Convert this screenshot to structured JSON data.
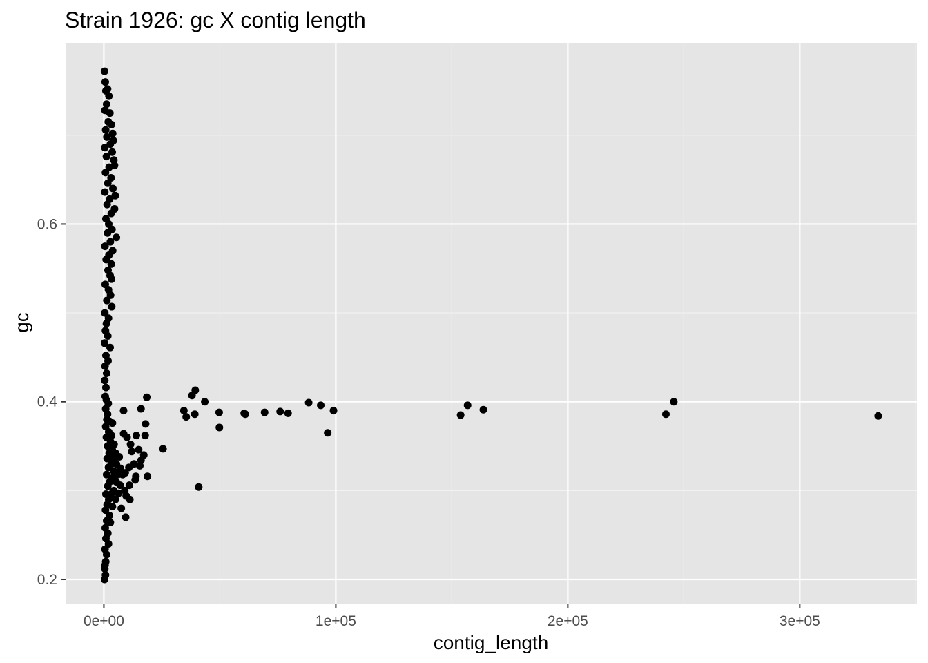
{
  "chart_data": {
    "type": "scatter",
    "title": "Strain 1926: gc X contig length",
    "xlabel": "contig_length",
    "ylabel": "gc",
    "xlim": [
      -16500,
      350500
    ],
    "ylim": [
      0.172,
      0.804
    ],
    "x_ticks": [
      {
        "value": 0,
        "label": "0e+00"
      },
      {
        "value": 100000,
        "label": "1e+05"
      },
      {
        "value": 200000,
        "label": "2e+05"
      },
      {
        "value": 300000,
        "label": "3e+05"
      }
    ],
    "y_ticks": [
      {
        "value": 0.2,
        "label": "0.2"
      },
      {
        "value": 0.4,
        "label": "0.4"
      },
      {
        "value": 0.6,
        "label": "0.6"
      }
    ],
    "grid": true,
    "panel_color": "#e5e5e5",
    "point_color": "#000000",
    "points": [
      {
        "x": 300,
        "y": 0.772
      },
      {
        "x": 600,
        "y": 0.76
      },
      {
        "x": 900,
        "y": 0.75
      },
      {
        "x": 1600,
        "y": 0.752
      },
      {
        "x": 2200,
        "y": 0.744
      },
      {
        "x": 1200,
        "y": 0.735
      },
      {
        "x": 500,
        "y": 0.728
      },
      {
        "x": 2600,
        "y": 0.725
      },
      {
        "x": 1900,
        "y": 0.715
      },
      {
        "x": 800,
        "y": 0.706
      },
      {
        "x": 3300,
        "y": 0.712
      },
      {
        "x": 3800,
        "y": 0.702
      },
      {
        "x": 1300,
        "y": 0.698
      },
      {
        "x": 4100,
        "y": 0.694
      },
      {
        "x": 2800,
        "y": 0.69
      },
      {
        "x": 400,
        "y": 0.686
      },
      {
        "x": 3600,
        "y": 0.681
      },
      {
        "x": 1100,
        "y": 0.676
      },
      {
        "x": 4300,
        "y": 0.672
      },
      {
        "x": 4600,
        "y": 0.666
      },
      {
        "x": 2300,
        "y": 0.664
      },
      {
        "x": 700,
        "y": 0.658
      },
      {
        "x": 3100,
        "y": 0.652
      },
      {
        "x": 1700,
        "y": 0.646
      },
      {
        "x": 3900,
        "y": 0.64
      },
      {
        "x": 400,
        "y": 0.636
      },
      {
        "x": 4900,
        "y": 0.632
      },
      {
        "x": 2500,
        "y": 0.628
      },
      {
        "x": 1400,
        "y": 0.622
      },
      {
        "x": 4600,
        "y": 0.617
      },
      {
        "x": 3200,
        "y": 0.612
      },
      {
        "x": 900,
        "y": 0.606
      },
      {
        "x": 2100,
        "y": 0.6
      },
      {
        "x": 3500,
        "y": 0.594
      },
      {
        "x": 1600,
        "y": 0.59
      },
      {
        "x": 5400,
        "y": 0.585
      },
      {
        "x": 2800,
        "y": 0.58
      },
      {
        "x": 500,
        "y": 0.575
      },
      {
        "x": 3800,
        "y": 0.57
      },
      {
        "x": 2200,
        "y": 0.565
      },
      {
        "x": 1000,
        "y": 0.56
      },
      {
        "x": 3200,
        "y": 0.555
      },
      {
        "x": 1800,
        "y": 0.548
      },
      {
        "x": 2700,
        "y": 0.542
      },
      {
        "x": 3300,
        "y": 0.538
      },
      {
        "x": 600,
        "y": 0.532
      },
      {
        "x": 2000,
        "y": 0.526
      },
      {
        "x": 2900,
        "y": 0.52
      },
      {
        "x": 1300,
        "y": 0.514
      },
      {
        "x": 3400,
        "y": 0.507
      },
      {
        "x": 400,
        "y": 0.5
      },
      {
        "x": 2000,
        "y": 0.494
      },
      {
        "x": 1100,
        "y": 0.488
      },
      {
        "x": 700,
        "y": 0.48
      },
      {
        "x": 1700,
        "y": 0.474
      },
      {
        "x": 300,
        "y": 0.466
      },
      {
        "x": 2700,
        "y": 0.461
      },
      {
        "x": 900,
        "y": 0.452
      },
      {
        "x": 1800,
        "y": 0.446
      },
      {
        "x": 500,
        "y": 0.44
      },
      {
        "x": 1200,
        "y": 0.432
      },
      {
        "x": 400,
        "y": 0.424
      },
      {
        "x": 900,
        "y": 0.416
      },
      {
        "x": 600,
        "y": 0.406
      },
      {
        "x": 1100,
        "y": 0.402
      },
      {
        "x": 1900,
        "y": 0.398
      },
      {
        "x": 800,
        "y": 0.392
      },
      {
        "x": 1600,
        "y": 0.386
      },
      {
        "x": 1300,
        "y": 0.38
      },
      {
        "x": 2400,
        "y": 0.378
      },
      {
        "x": 3700,
        "y": 0.376
      },
      {
        "x": 800,
        "y": 0.372
      },
      {
        "x": 2100,
        "y": 0.366
      },
      {
        "x": 1100,
        "y": 0.36
      },
      {
        "x": 3300,
        "y": 0.362
      },
      {
        "x": 2900,
        "y": 0.355
      },
      {
        "x": 1600,
        "y": 0.35
      },
      {
        "x": 4400,
        "y": 0.352
      },
      {
        "x": 3600,
        "y": 0.346
      },
      {
        "x": 2300,
        "y": 0.342
      },
      {
        "x": 5100,
        "y": 0.342
      },
      {
        "x": 1400,
        "y": 0.336
      },
      {
        "x": 4100,
        "y": 0.336
      },
      {
        "x": 6600,
        "y": 0.338
      },
      {
        "x": 3200,
        "y": 0.33
      },
      {
        "x": 5400,
        "y": 0.33
      },
      {
        "x": 2000,
        "y": 0.326
      },
      {
        "x": 7100,
        "y": 0.325
      },
      {
        "x": 4200,
        "y": 0.322
      },
      {
        "x": 1200,
        "y": 0.318
      },
      {
        "x": 6000,
        "y": 0.318
      },
      {
        "x": 3600,
        "y": 0.314
      },
      {
        "x": 8100,
        "y": 0.318
      },
      {
        "x": 2600,
        "y": 0.31
      },
      {
        "x": 5300,
        "y": 0.31
      },
      {
        "x": 1700,
        "y": 0.305
      },
      {
        "x": 7000,
        "y": 0.306
      },
      {
        "x": 4300,
        "y": 0.3
      },
      {
        "x": 3100,
        "y": 0.296
      },
      {
        "x": 900,
        "y": 0.296
      },
      {
        "x": 6300,
        "y": 0.297
      },
      {
        "x": 2100,
        "y": 0.29
      },
      {
        "x": 5000,
        "y": 0.29
      },
      {
        "x": 1400,
        "y": 0.284
      },
      {
        "x": 3700,
        "y": 0.282
      },
      {
        "x": 700,
        "y": 0.278
      },
      {
        "x": 2400,
        "y": 0.272
      },
      {
        "x": 1200,
        "y": 0.266
      },
      {
        "x": 2800,
        "y": 0.264
      },
      {
        "x": 600,
        "y": 0.258
      },
      {
        "x": 1700,
        "y": 0.252
      },
      {
        "x": 900,
        "y": 0.246
      },
      {
        "x": 2000,
        "y": 0.24
      },
      {
        "x": 500,
        "y": 0.234
      },
      {
        "x": 1200,
        "y": 0.228
      },
      {
        "x": 800,
        "y": 0.22
      },
      {
        "x": 400,
        "y": 0.212
      },
      {
        "x": 700,
        "y": 0.205
      },
      {
        "x": 300,
        "y": 0.2
      },
      {
        "x": 500,
        "y": 0.216
      },
      {
        "x": 8500,
        "y": 0.39
      },
      {
        "x": 16000,
        "y": 0.392
      },
      {
        "x": 18500,
        "y": 0.405
      },
      {
        "x": 18000,
        "y": 0.375
      },
      {
        "x": 8500,
        "y": 0.364
      },
      {
        "x": 14000,
        "y": 0.362
      },
      {
        "x": 17800,
        "y": 0.362
      },
      {
        "x": 10000,
        "y": 0.36
      },
      {
        "x": 11500,
        "y": 0.352
      },
      {
        "x": 15000,
        "y": 0.346
      },
      {
        "x": 12000,
        "y": 0.344
      },
      {
        "x": 17200,
        "y": 0.34
      },
      {
        "x": 16000,
        "y": 0.334
      },
      {
        "x": 13000,
        "y": 0.33
      },
      {
        "x": 15500,
        "y": 0.328
      },
      {
        "x": 10800,
        "y": 0.326
      },
      {
        "x": 9200,
        "y": 0.32
      },
      {
        "x": 13800,
        "y": 0.316
      },
      {
        "x": 18800,
        "y": 0.316
      },
      {
        "x": 13500,
        "y": 0.312
      },
      {
        "x": 11000,
        "y": 0.306
      },
      {
        "x": 9000,
        "y": 0.3
      },
      {
        "x": 9600,
        "y": 0.294
      },
      {
        "x": 11200,
        "y": 0.29
      },
      {
        "x": 7500,
        "y": 0.28
      },
      {
        "x": 9400,
        "y": 0.27
      },
      {
        "x": 25500,
        "y": 0.347
      },
      {
        "x": 34500,
        "y": 0.39
      },
      {
        "x": 38000,
        "y": 0.407
      },
      {
        "x": 39400,
        "y": 0.413
      },
      {
        "x": 35500,
        "y": 0.383
      },
      {
        "x": 39200,
        "y": 0.386
      },
      {
        "x": 43500,
        "y": 0.4
      },
      {
        "x": 49700,
        "y": 0.388
      },
      {
        "x": 49800,
        "y": 0.371
      },
      {
        "x": 40900,
        "y": 0.304
      },
      {
        "x": 60500,
        "y": 0.387
      },
      {
        "x": 61000,
        "y": 0.386
      },
      {
        "x": 69300,
        "y": 0.388
      },
      {
        "x": 76000,
        "y": 0.389
      },
      {
        "x": 79400,
        "y": 0.387
      },
      {
        "x": 88300,
        "y": 0.399
      },
      {
        "x": 93500,
        "y": 0.396
      },
      {
        "x": 96500,
        "y": 0.365
      },
      {
        "x": 99000,
        "y": 0.39
      },
      {
        "x": 153800,
        "y": 0.385
      },
      {
        "x": 156800,
        "y": 0.396
      },
      {
        "x": 163600,
        "y": 0.391
      },
      {
        "x": 242300,
        "y": 0.386
      },
      {
        "x": 245700,
        "y": 0.4
      },
      {
        "x": 333800,
        "y": 0.384
      }
    ]
  }
}
